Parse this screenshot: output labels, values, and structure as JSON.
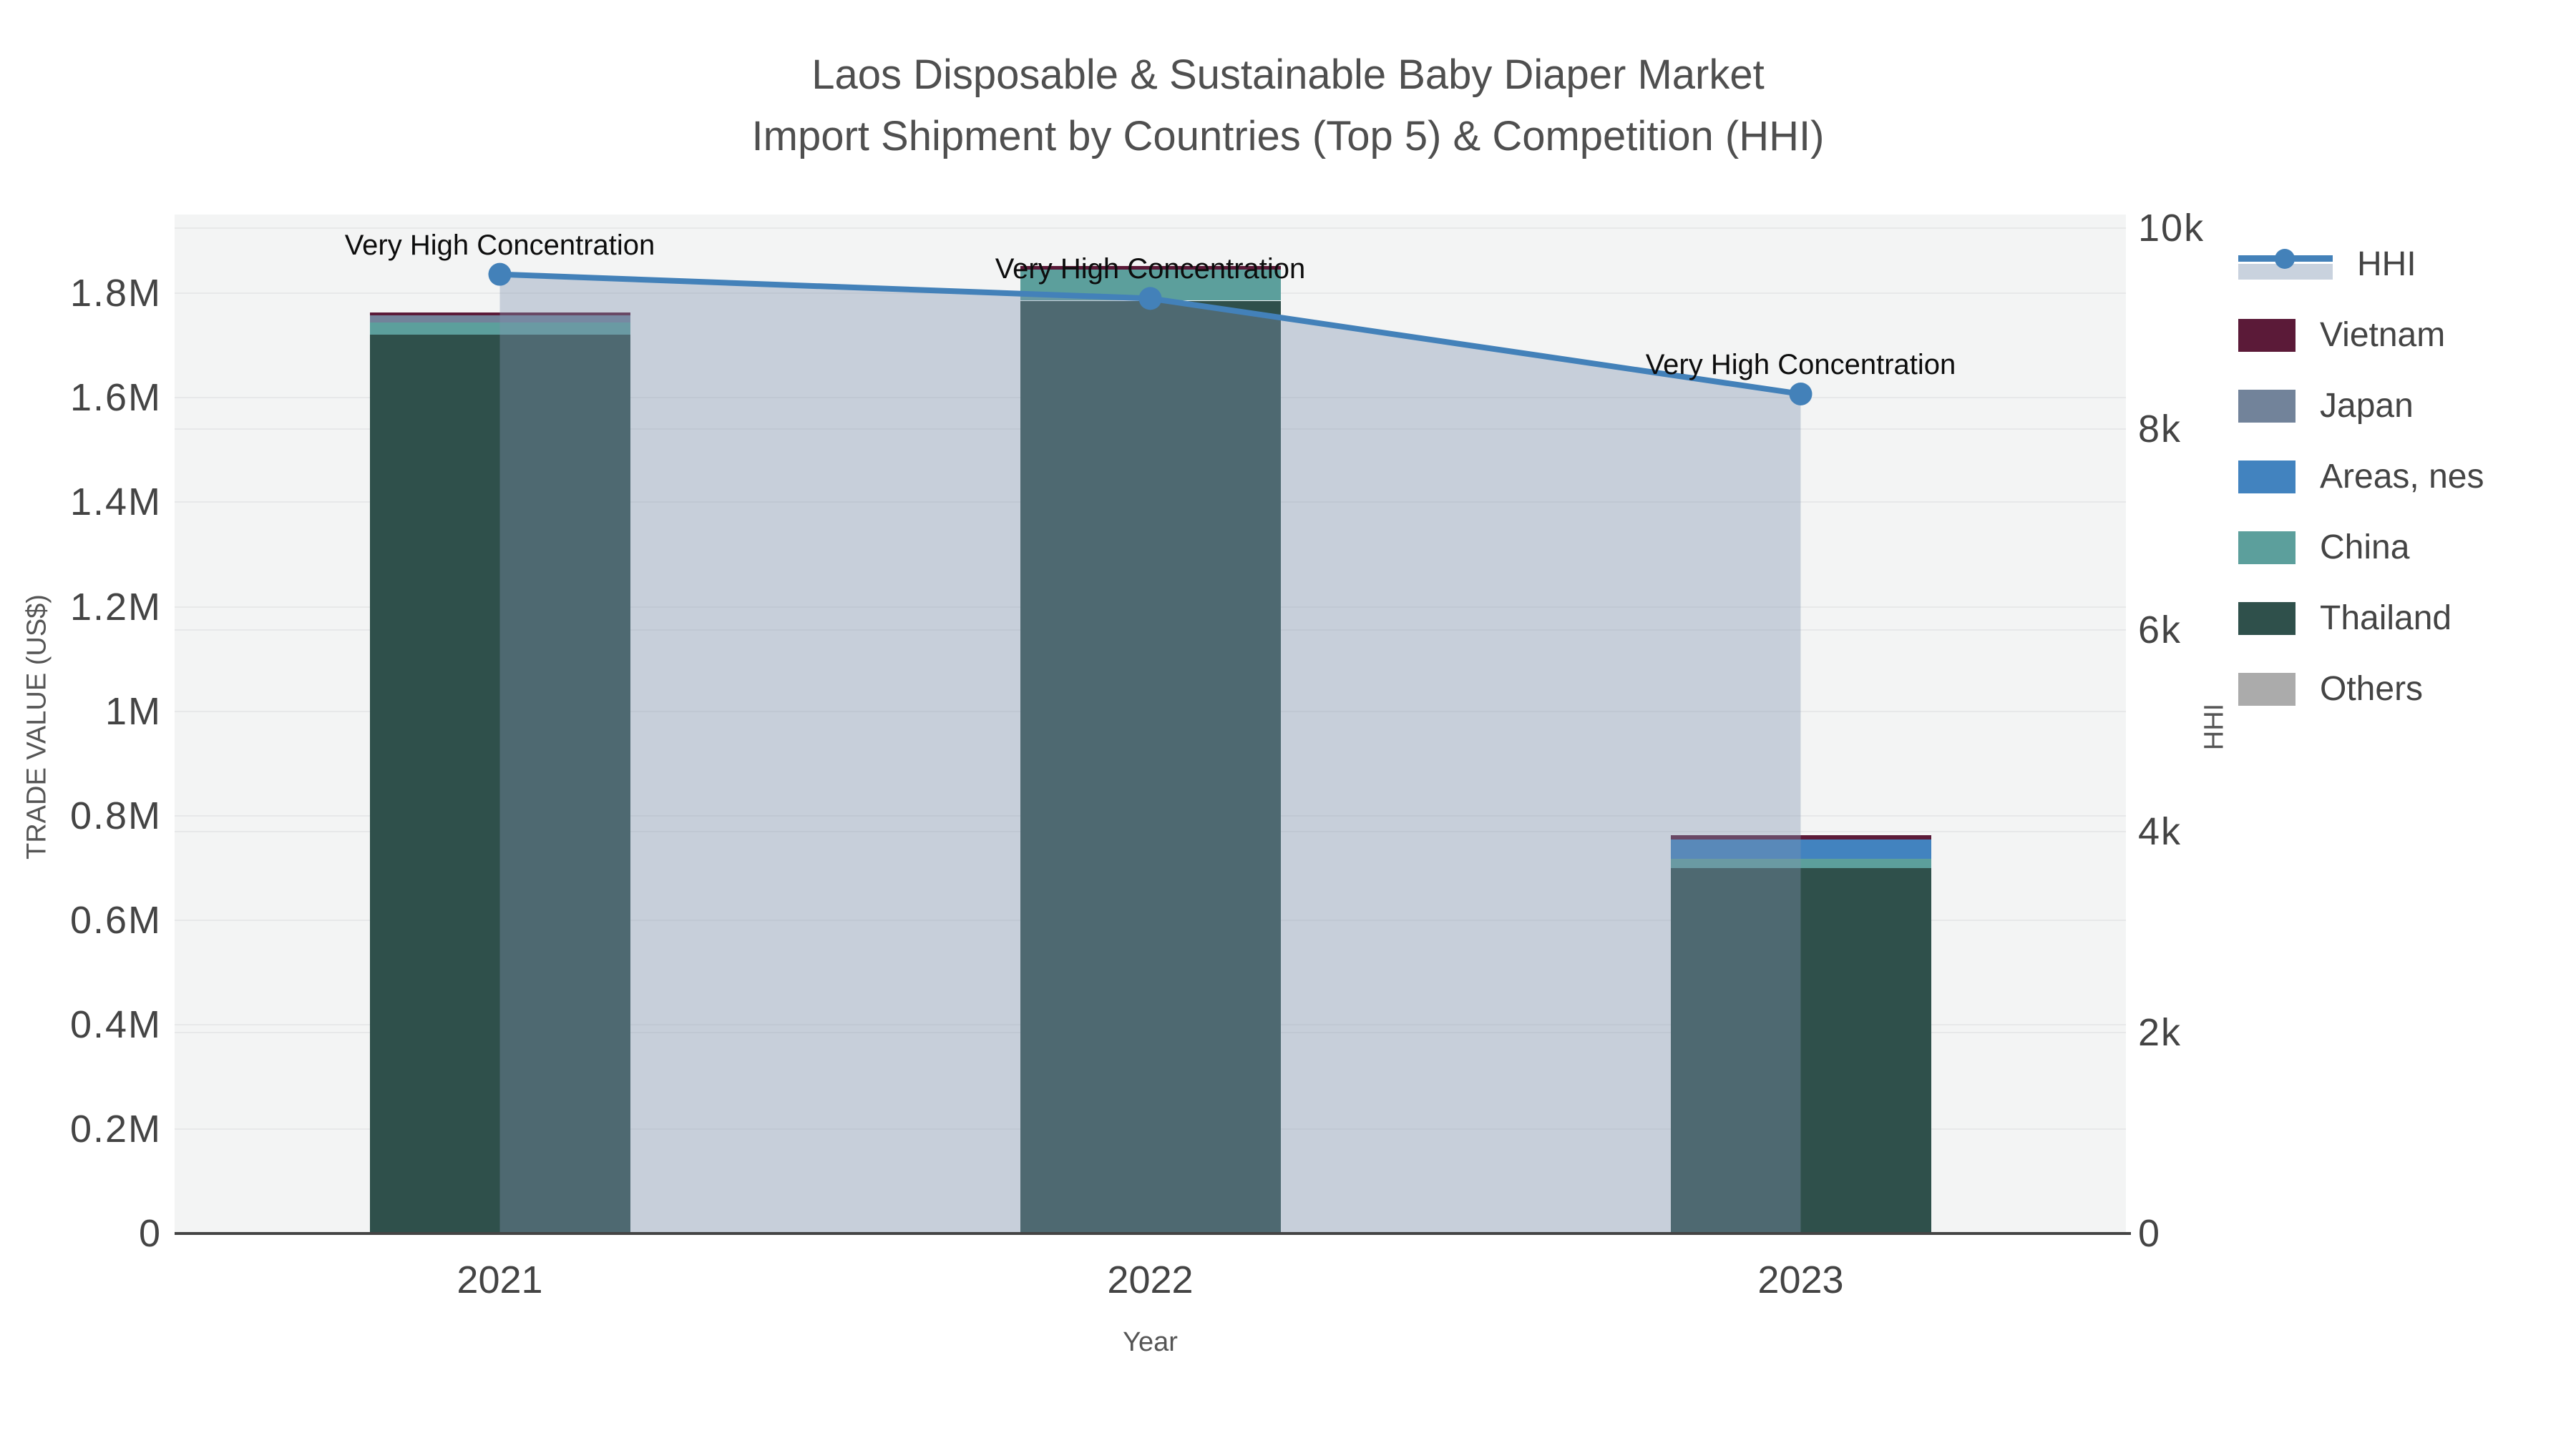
{
  "title": {
    "line1": "Laos Disposable & Sustainable Baby Diaper Market",
    "line2": "Import Shipment by Countries (Top 5) & Competition (HHI)"
  },
  "axes": {
    "x": {
      "title": "Year",
      "categories": [
        "2021",
        "2022",
        "2023"
      ]
    },
    "y_left": {
      "title": "TRADE VALUE (US$)",
      "labels": [
        "0",
        "0.2M",
        "0.4M",
        "0.6M",
        "0.8M",
        "1M",
        "1.2M",
        "1.4M",
        "1.6M",
        "1.8M"
      ],
      "values": [
        0,
        200000,
        400000,
        600000,
        800000,
        1000000,
        1200000,
        1400000,
        1600000,
        1800000
      ]
    },
    "y_right": {
      "title": "HHI",
      "labels": [
        "0",
        "2k",
        "4k",
        "6k",
        "8k",
        "10k"
      ],
      "values": [
        0,
        2000,
        4000,
        6000,
        8000,
        10000
      ]
    }
  },
  "legend": {
    "items": [
      {
        "label": "HHI",
        "type": "line",
        "color": "#4381b9"
      },
      {
        "label": "Vietnam",
        "type": "box",
        "color": "#5b1a38"
      },
      {
        "label": "Japan",
        "type": "box",
        "color": "#72839a"
      },
      {
        "label": "Areas, nes",
        "type": "box",
        "color": "#4283bf"
      },
      {
        "label": "China",
        "type": "box",
        "color": "#5c9f9c"
      },
      {
        "label": "Thailand",
        "type": "box",
        "color": "#2f504b"
      },
      {
        "label": "Others",
        "type": "box",
        "color": "#ababab"
      }
    ]
  },
  "chart_data": {
    "type": "combo-stacked-bar-line",
    "categories": [
      "2021",
      "2022",
      "2023"
    ],
    "bar_value_axis": "TRADE VALUE (US$)",
    "y_left_max": 1951000,
    "y_right_max": 10135,
    "series": [
      {
        "name": "Others",
        "color": "#ababab",
        "values": [
          0,
          0,
          0
        ]
      },
      {
        "name": "Thailand",
        "color": "#2f504b",
        "values": [
          1721000,
          1786000,
          700000
        ]
      },
      {
        "name": "China",
        "color": "#5c9f9c",
        "values": [
          23500,
          59000,
          18000
        ]
      },
      {
        "name": "Areas, nes",
        "color": "#4283bf",
        "values": [
          0,
          0,
          37000
        ]
      },
      {
        "name": "Japan",
        "color": "#72839a",
        "values": [
          13500,
          0,
          0
        ]
      },
      {
        "name": "Vietnam",
        "color": "#5b1a38",
        "values": [
          6000,
          7000,
          7000
        ]
      }
    ],
    "bar_totals": [
      1764000,
      1852000,
      762000
    ],
    "hhi": {
      "name": "HHI",
      "values": [
        9540,
        9300,
        8350
      ],
      "line_color": "#4381b9",
      "area_fill": "rgba(130,148,176,0.38)"
    },
    "annotations": [
      {
        "x_index": 0,
        "text": "Very High Concentration"
      },
      {
        "x_index": 1,
        "text": "Very High Concentration"
      },
      {
        "x_index": 2,
        "text": "Very High Concentration"
      }
    ],
    "legend_position": "right",
    "grid": true
  }
}
